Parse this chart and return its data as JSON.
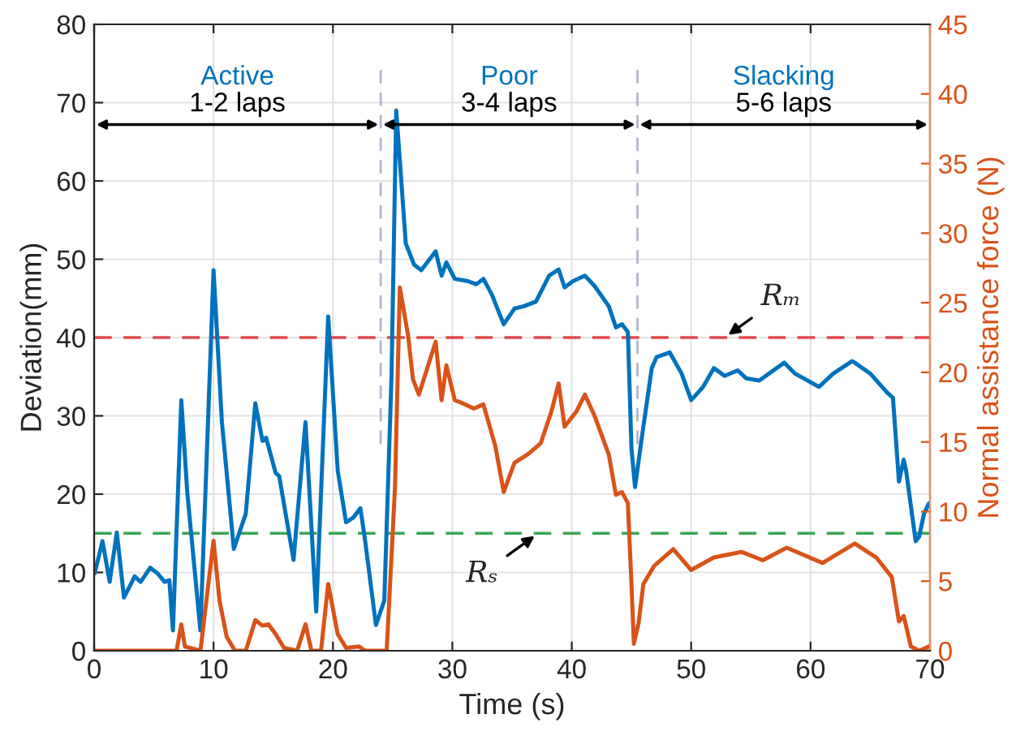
{
  "chart_data": {
    "type": "line",
    "xlabel": "Time (s)",
    "ylabel": "Deviation(mm)",
    "y2label": "Normal assistance force (N)",
    "xlim": [
      0,
      70
    ],
    "xticks": [
      0,
      10,
      20,
      30,
      40,
      50,
      60,
      70
    ],
    "ylim": [
      0,
      80
    ],
    "yticks": [
      0,
      10,
      20,
      30,
      40,
      50,
      60,
      70,
      80
    ],
    "y2lim": [
      0,
      45
    ],
    "y2ticks": [
      0,
      5,
      10,
      15,
      20,
      25,
      30,
      35,
      40,
      45
    ],
    "grid": true,
    "marker": "none",
    "line_style": "solid",
    "series": [
      {
        "color": "#0072bd",
        "x": [
          0.05,
          0.7,
          1.3,
          1.9,
          2.5,
          3.4,
          3.9,
          4.7,
          5.3,
          5.9,
          6.3,
          6.6,
          7.3,
          7.8,
          8.9,
          10.0,
          10.7,
          11.7,
          12.7,
          13.5,
          14.1,
          14.4,
          15.2,
          15.5,
          16.7,
          17.7,
          18.6,
          19.6,
          20.4,
          21.1,
          21.7,
          22.3,
          22.7,
          23.6,
          24.3,
          24.9,
          25.3,
          26.1,
          26.8,
          27.4,
          28.6,
          29.1,
          29.5,
          30.2,
          31.3,
          32.0,
          32.6,
          33.3,
          34.3,
          35.2,
          36.0,
          37.0,
          38.1,
          38.9,
          39.4,
          40.1,
          41.1,
          41.9,
          43.1,
          43.7,
          44.2,
          44.7,
          45.0,
          45.3,
          45.8,
          46.7,
          47.1,
          48.2,
          49.2,
          50.0,
          51.0,
          51.9,
          52.8,
          53.9,
          54.6,
          55.7,
          57.8,
          58.7,
          60.7,
          61.9,
          63.5,
          65.0,
          66.4,
          66.9,
          67.4,
          67.8,
          68.0,
          68.8,
          69.1,
          69.5,
          69.9
        ],
        "values": [
          9.9,
          14.0,
          8.8,
          15.1,
          6.8,
          9.5,
          8.8,
          10.6,
          9.9,
          8.8,
          9.0,
          2.6,
          32.0,
          20.2,
          2.6,
          48.6,
          29.2,
          13.0,
          17.5,
          31.6,
          26.8,
          27.2,
          22.7,
          22.3,
          11.6,
          29.2,
          5.0,
          42.7,
          23.0,
          16.4,
          17.0,
          18.2,
          14.0,
          3.3,
          6.4,
          34.8,
          69.0,
          52.0,
          49.3,
          48.6,
          51.0,
          47.9,
          49.6,
          47.5,
          47.2,
          46.8,
          47.5,
          45.5,
          41.7,
          43.7,
          44.0,
          44.6,
          47.9,
          48.7,
          46.4,
          47.2,
          47.9,
          46.6,
          44.0,
          41.3,
          41.7,
          40.7,
          25.8,
          20.9,
          26.5,
          36.1,
          37.5,
          38.1,
          35.4,
          32.0,
          33.7,
          36.1,
          35.1,
          35.8,
          34.8,
          34.5,
          36.8,
          35.4,
          33.7,
          35.4,
          37.0,
          35.4,
          33.0,
          32.3,
          21.6,
          24.4,
          23.0,
          14.0,
          14.6,
          17.5,
          18.8
        ]
      },
      {
        "color": "#d95319",
        "axis": "y2",
        "x": [
          0,
          6.9,
          7.3,
          7.6,
          8.9,
          10.0,
          10.5,
          11.1,
          11.8,
          12.7,
          13.5,
          14.1,
          14.6,
          15.2,
          15.9,
          17.0,
          17.7,
          18.2,
          19.0,
          19.6,
          20.4,
          21.1,
          22.2,
          22.7,
          24.5,
          25.2,
          25.6,
          26.3,
          26.7,
          27.2,
          27.9,
          28.6,
          29.1,
          29.5,
          30.2,
          30.8,
          31.8,
          32.6,
          33.6,
          34.3,
          35.2,
          36.3,
          37.4,
          38.3,
          38.9,
          39.4,
          40.4,
          41.1,
          41.9,
          43.1,
          43.7,
          44.2,
          44.7,
          45.0,
          45.2,
          45.6,
          46.0,
          46.9,
          48.5,
          50.0,
          51.9,
          54.2,
          56.0,
          58.0,
          61.0,
          63.7,
          65.5,
          66.8,
          67.4,
          67.8,
          68.4,
          69.1,
          69.9
        ],
        "values": [
          0,
          0,
          1.9,
          0.3,
          0,
          7.9,
          3.6,
          1.0,
          0,
          0,
          2.2,
          1.8,
          1.9,
          1.2,
          0.2,
          0,
          1.9,
          0,
          0,
          4.8,
          1.2,
          0.2,
          0.3,
          0,
          0,
          11.8,
          26.1,
          22.6,
          19.5,
          18.4,
          20.3,
          22.2,
          18.0,
          20.5,
          18.0,
          17.8,
          17.4,
          17.7,
          14.7,
          11.4,
          13.5,
          14.1,
          14.9,
          17.2,
          19.2,
          16.1,
          17.2,
          18.4,
          16.9,
          14.1,
          11.2,
          11.4,
          10.6,
          4.8,
          0.5,
          2.0,
          4.8,
          6.1,
          7.3,
          5.8,
          6.7,
          7.1,
          6.5,
          7.4,
          6.3,
          7.7,
          6.7,
          5.3,
          2.1,
          2.5,
          0.3,
          0,
          0.3
        ]
      }
    ],
    "ref_lines": [
      {
        "axis": "y",
        "value": 40,
        "color": "#e0474c",
        "line_style": "dashed"
      },
      {
        "axis": "y",
        "value": 15,
        "color": "#3aa655",
        "line_style": "dashed"
      },
      {
        "axis": "x",
        "value": 24,
        "color": "#b4b4c8",
        "line_style": "dashed"
      },
      {
        "axis": "x",
        "value": 45.5,
        "color": "#b4b4c8",
        "line_style": "dashed"
      }
    ],
    "annotations": [
      "Active",
      "1-2 laps",
      "Poor",
      "3-4 laps",
      "Slacking",
      "5-6 laps",
      {
        "text": "Rₘ",
        "x": 52.8,
        "y": 40
      },
      {
        "text": "Rₛ",
        "x": 37.2,
        "y": 15
      }
    ]
  }
}
